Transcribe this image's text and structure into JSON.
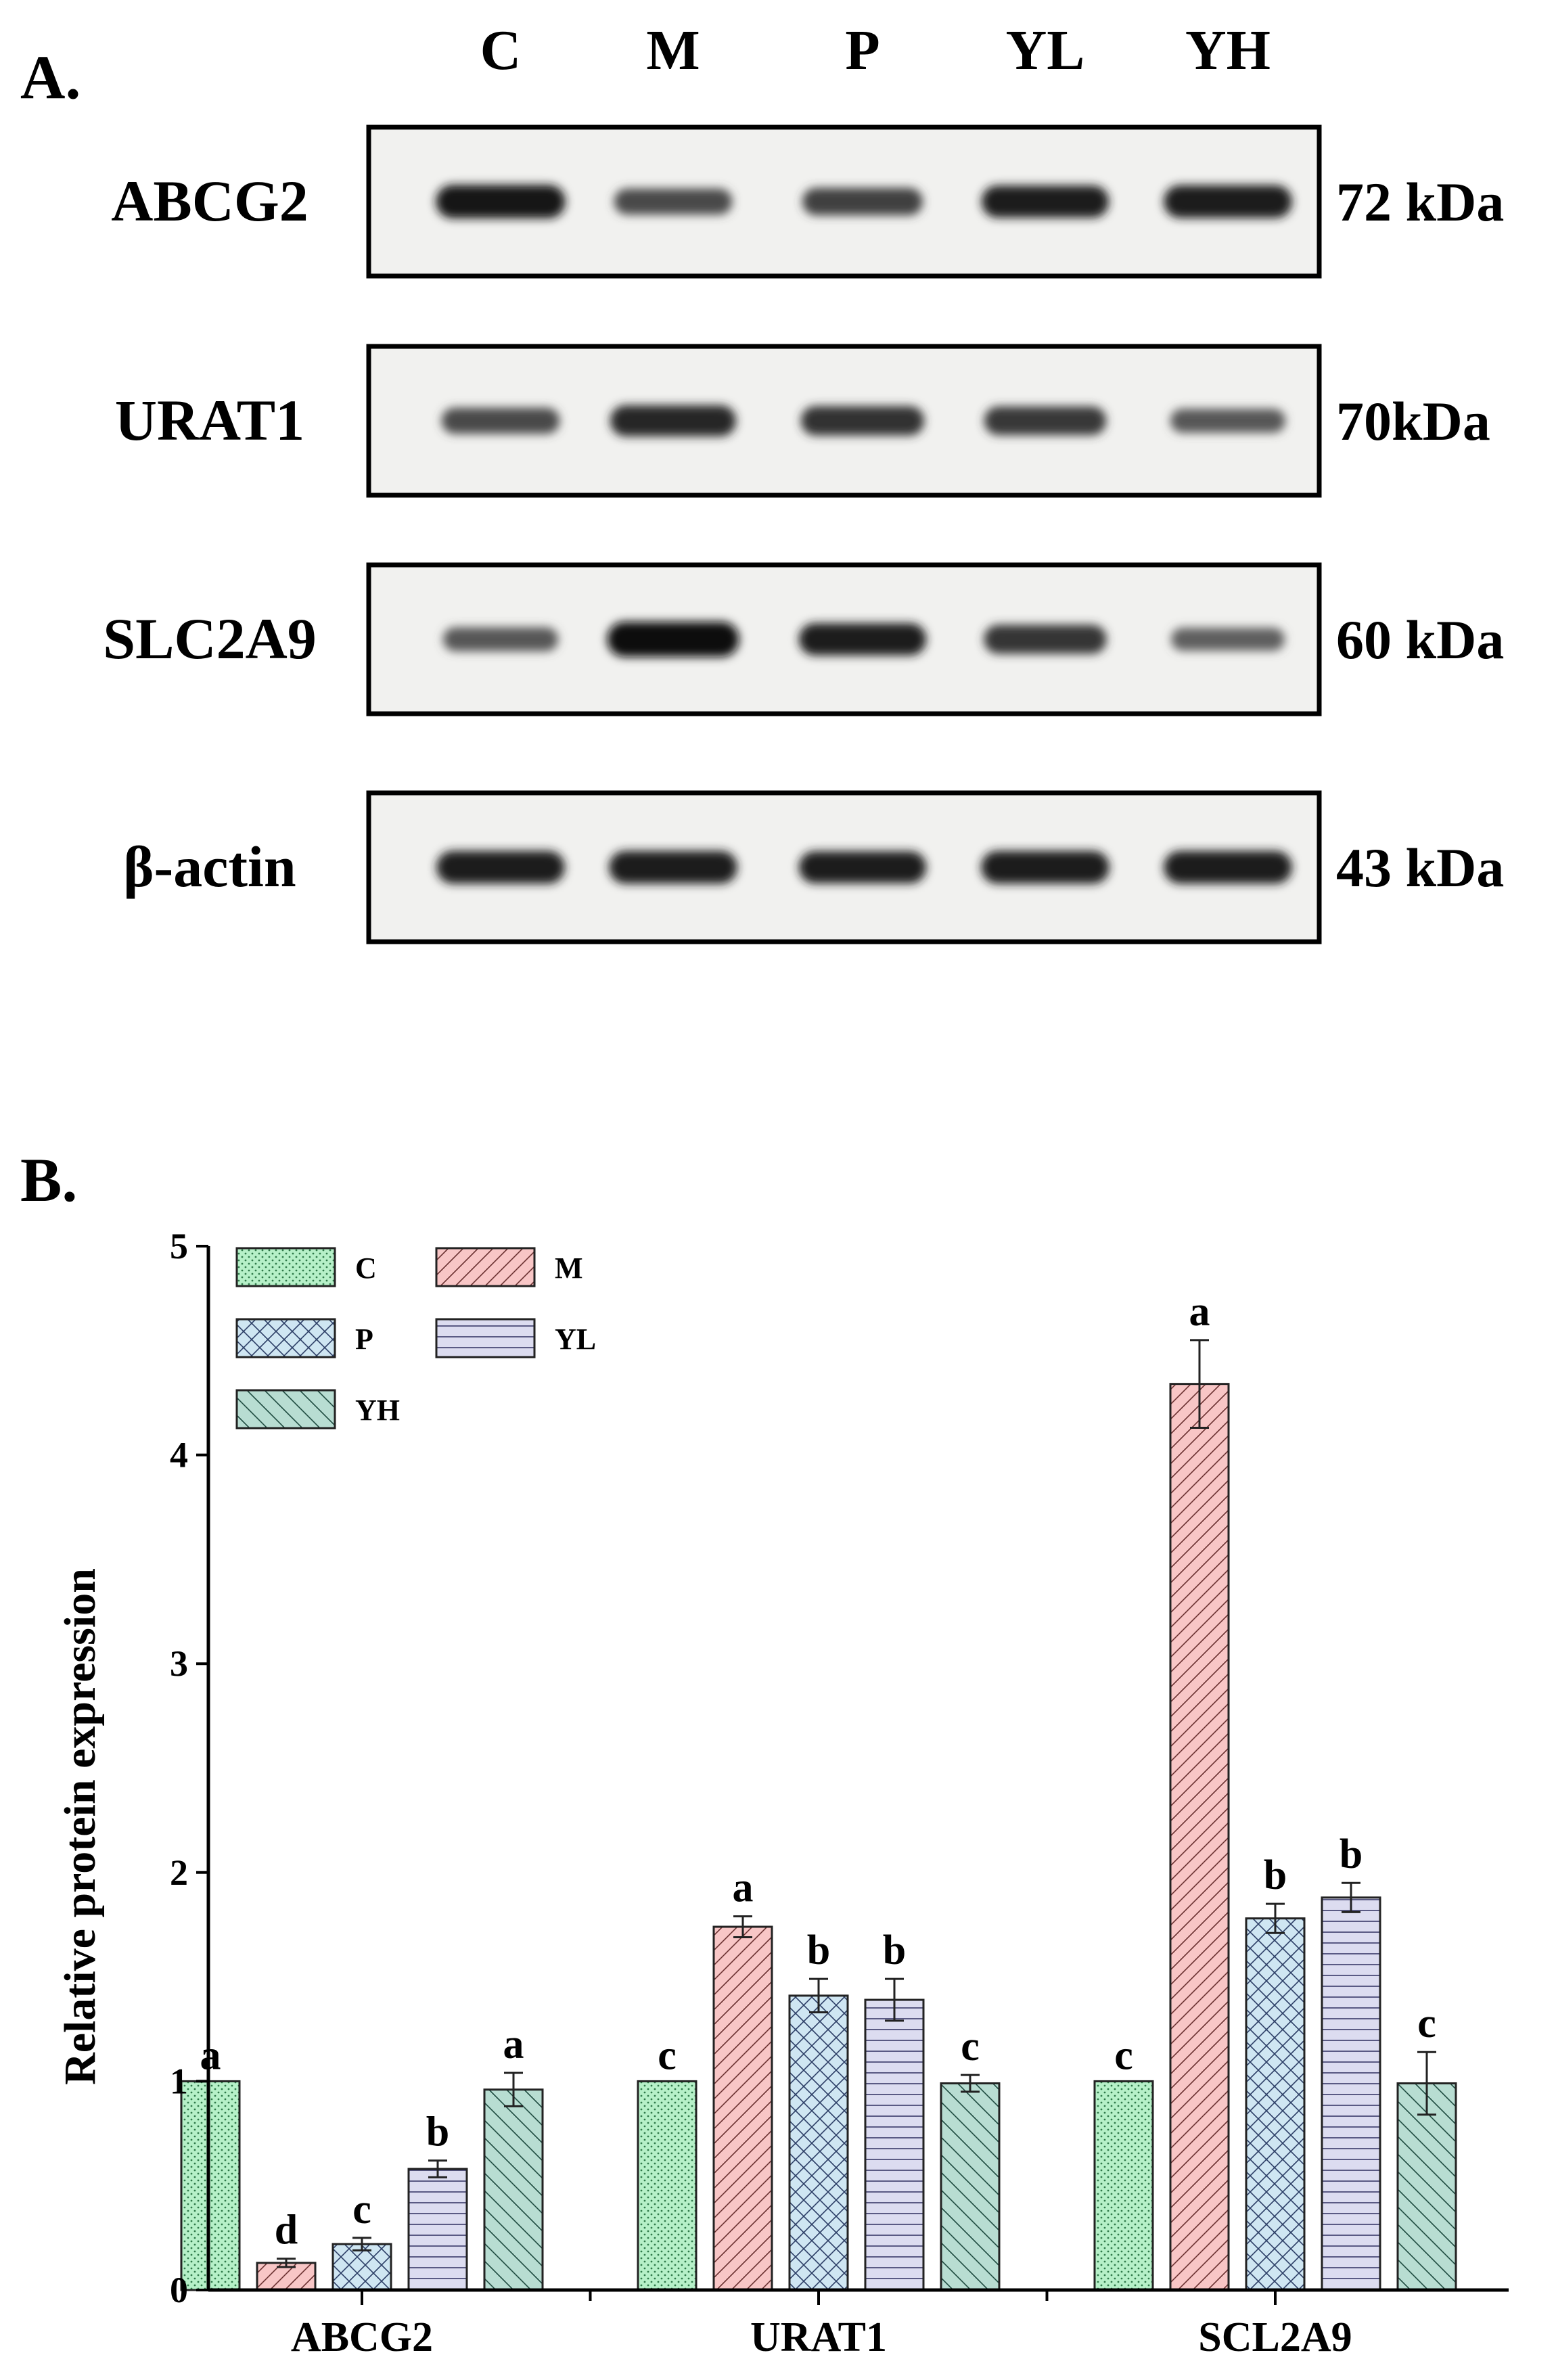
{
  "panel_a": {
    "label": "A.",
    "lanes": [
      "C",
      "M",
      "P",
      "YL",
      "YH"
    ],
    "blots": [
      {
        "name": "ABCG2",
        "size": "72 kDa",
        "intensity": [
          0.92,
          0.55,
          0.62,
          0.85,
          0.88
        ]
      },
      {
        "name": "URAT1",
        "size": "70kDa",
        "intensity": [
          0.55,
          0.8,
          0.72,
          0.68,
          0.45
        ]
      },
      {
        "name": "SLC2A9",
        "size": "60 kDa",
        "intensity": [
          0.45,
          1.0,
          0.85,
          0.7,
          0.4
        ]
      },
      {
        "name": "β-actin",
        "size": "43 kDa",
        "intensity": [
          0.88,
          0.88,
          0.85,
          0.88,
          0.88
        ]
      }
    ]
  },
  "panel_b": {
    "label": "B."
  },
  "chart_data": {
    "type": "bar",
    "ylabel": "Relative protein expression",
    "xlabel": "",
    "ylim": [
      0,
      5
    ],
    "yticks": [
      0,
      1,
      2,
      3,
      4,
      5
    ],
    "categories": [
      "ABCG2",
      "URAT1",
      "SCL2A9"
    ],
    "legend_position": "top-left",
    "grid": false,
    "series": [
      {
        "name": "C",
        "values": [
          1.0,
          1.0,
          1.0
        ],
        "errors": [
          0,
          0,
          0
        ],
        "letters": [
          "a",
          "c",
          "c"
        ],
        "color": "#b6f0c8",
        "pattern": "dots"
      },
      {
        "name": "M",
        "values": [
          0.13,
          1.74,
          4.34
        ],
        "errors": [
          0.02,
          0.05,
          0.21
        ],
        "letters": [
          "d",
          "a",
          "a"
        ],
        "color": "#f8c6c6",
        "pattern": "diagonal"
      },
      {
        "name": "P",
        "values": [
          0.22,
          1.41,
          1.78
        ],
        "errors": [
          0.03,
          0.08,
          0.07
        ],
        "letters": [
          "c",
          "b",
          "b"
        ],
        "color": "#cfe6f2",
        "pattern": "crosshatch"
      },
      {
        "name": "YL",
        "values": [
          0.58,
          1.39,
          1.88
        ],
        "errors": [
          0.04,
          0.1,
          0.07
        ],
        "letters": [
          "b",
          "b",
          "b"
        ],
        "color": "#dcdcf0",
        "pattern": "horizontal"
      },
      {
        "name": "YH",
        "values": [
          0.96,
          0.99,
          0.99
        ],
        "errors": [
          0.08,
          0.04,
          0.15
        ],
        "letters": [
          "a",
          "c",
          "c"
        ],
        "color": "#b8ddd2",
        "pattern": "backdiagonal"
      }
    ]
  }
}
